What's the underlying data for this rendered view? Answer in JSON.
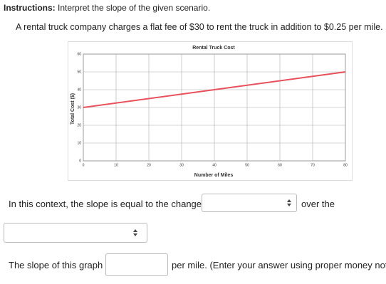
{
  "instructions": {
    "label": "Instructions:",
    "text": "Interpret the slope of the given scenario."
  },
  "problem": "A rental truck company charges a flat fee of $30 to rent the truck in addition to $0.25 per mile.",
  "chart_data": {
    "type": "line",
    "title": "Rental Truck Cost",
    "x_label": "Number of Miles",
    "y_label": "Total Cost ($)",
    "x": [
      0,
      80
    ],
    "values": [
      30,
      50
    ],
    "color": "#e8505b",
    "xlim": [
      0,
      80
    ],
    "xticks": [
      0,
      10,
      20,
      30,
      40,
      50,
      60,
      70,
      80
    ],
    "ylim": [
      0,
      60
    ],
    "yticks": [
      0,
      10,
      20,
      30,
      40,
      50,
      60
    ],
    "grid": true
  },
  "question1": {
    "before": "In this context, the slope is equal to the change in",
    "after": "over the"
  },
  "question2": {
    "before": "The slope of this graph is $",
    "after": "per mile. (Enter your answer using proper money notation"
  }
}
